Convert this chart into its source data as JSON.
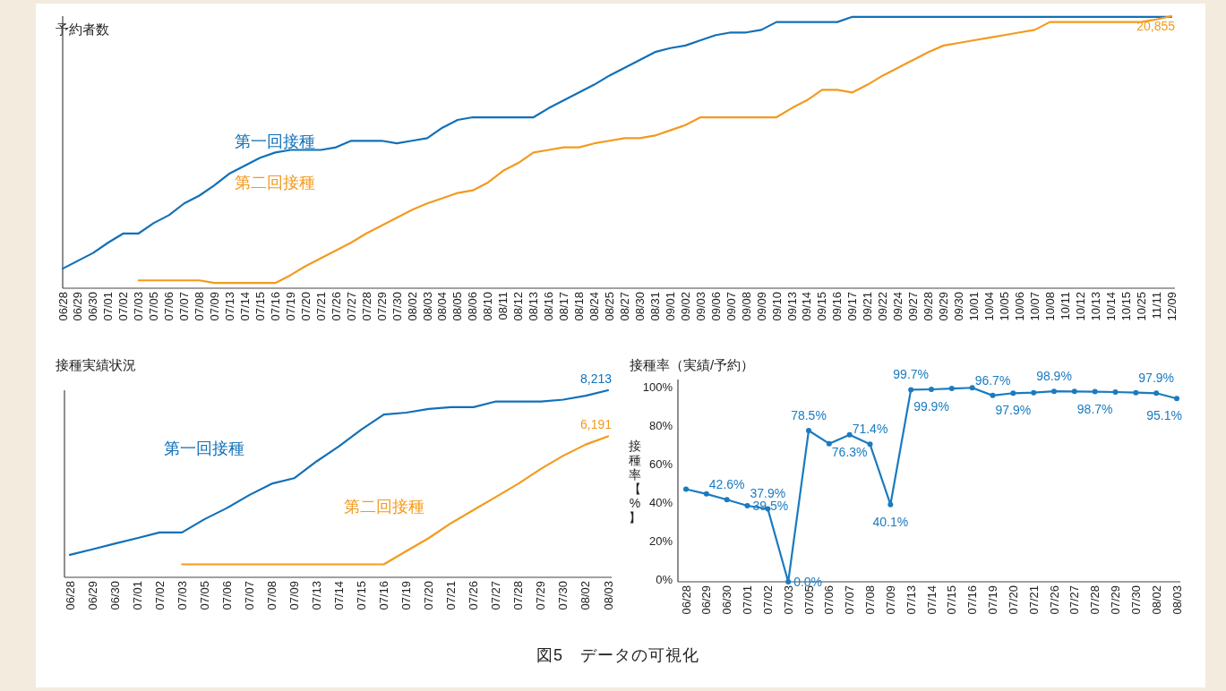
{
  "chart_data": [
    {
      "type": "line",
      "title": "予約者数",
      "ylim": [
        0,
        20855
      ],
      "categories": [
        "06/28",
        "06/29",
        "06/30",
        "07/01",
        "07/02",
        "07/03",
        "07/05",
        "07/06",
        "07/07",
        "07/08",
        "07/09",
        "07/13",
        "07/14",
        "07/15",
        "07/16",
        "07/19",
        "07/20",
        "07/21",
        "07/26",
        "07/27",
        "07/28",
        "07/29",
        "07/30",
        "08/02",
        "08/03",
        "08/04",
        "08/05",
        "08/06",
        "08/10",
        "08/11",
        "08/12",
        "08/13",
        "08/16",
        "08/17",
        "08/18",
        "08/24",
        "08/25",
        "08/27",
        "08/30",
        "08/31",
        "09/01",
        "09/02",
        "09/03",
        "09/06",
        "09/07",
        "09/08",
        "09/09",
        "09/10",
        "09/13",
        "09/14",
        "09/15",
        "09/16",
        "09/17",
        "09/21",
        "09/22",
        "09/24",
        "09/27",
        "09/28",
        "09/29",
        "09/30",
        "10/01",
        "10/04",
        "10/05",
        "10/06",
        "10/07",
        "10/08",
        "10/11",
        "10/12",
        "10/13",
        "10/14",
        "10/15",
        "10/25",
        "11/11",
        "12/09"
      ],
      "series": [
        {
          "name": "第一回接種",
          "color": "#1170b8",
          "values": [
            1500,
            2100,
            2700,
            3500,
            4200,
            4200,
            5000,
            5600,
            6500,
            7100,
            7900,
            8800,
            9400,
            10000,
            10400,
            10600,
            10600,
            10600,
            10800,
            11300,
            11300,
            11300,
            11100,
            11300,
            11500,
            12300,
            12900,
            13100,
            13100,
            13100,
            13100,
            13100,
            13800,
            14400,
            15000,
            15600,
            16300,
            16900,
            17500,
            18100,
            18400,
            18600,
            19000,
            19400,
            19600,
            19600,
            19800,
            20400,
            20400,
            20400,
            20400,
            20400,
            20800,
            20800,
            20800,
            20800,
            20800,
            20800,
            20800,
            20800,
            20800,
            20800,
            20800,
            20800,
            20800,
            20800,
            20800,
            20800,
            20800,
            20800,
            20800,
            20800,
            20800,
            20800
          ]
        },
        {
          "name": "第二回接種",
          "color": "#f39a1e",
          "values": [
            null,
            null,
            null,
            null,
            null,
            600,
            600,
            600,
            600,
            600,
            400,
            400,
            400,
            400,
            400,
            1000,
            1700,
            2300,
            2900,
            3500,
            4200,
            4800,
            5400,
            6000,
            6500,
            6900,
            7300,
            7500,
            8100,
            9000,
            9600,
            10400,
            10600,
            10800,
            10800,
            11100,
            11300,
            11500,
            11500,
            11700,
            12100,
            12500,
            13100,
            13100,
            13100,
            13100,
            13100,
            13100,
            13800,
            14400,
            15200,
            15200,
            15000,
            15600,
            16300,
            16900,
            17500,
            18100,
            18600,
            18800,
            19000,
            19200,
            19400,
            19600,
            19800,
            20400,
            20400,
            20400,
            20400,
            20400,
            20400,
            20400,
            20600,
            20855
          ],
          "value_labels": [
            null,
            null,
            null,
            null,
            null,
            null,
            null,
            null,
            null,
            null,
            null,
            null,
            null,
            null,
            null,
            null,
            null,
            null,
            null,
            null,
            null,
            null,
            null,
            null,
            null,
            null,
            null,
            null,
            null,
            null,
            null,
            null,
            null,
            null,
            null,
            null,
            null,
            null,
            null,
            null,
            null,
            null,
            null,
            null,
            null,
            null,
            null,
            null,
            null,
            null,
            null,
            null,
            null,
            null,
            null,
            null,
            null,
            null,
            null,
            null,
            null,
            null,
            null,
            null,
            null,
            null,
            null,
            null,
            null,
            null,
            null,
            null,
            null,
            "20,855"
          ]
        }
      ]
    },
    {
      "type": "line",
      "title": "接種実績状況",
      "ylim": [
        0,
        8213
      ],
      "categories": [
        "06/28",
        "06/29",
        "06/30",
        "07/01",
        "07/02",
        "07/03",
        "07/05",
        "07/06",
        "07/07",
        "07/08",
        "07/09",
        "07/13",
        "07/14",
        "07/15",
        "07/16",
        "07/19",
        "07/20",
        "07/21",
        "07/26",
        "07/27",
        "07/28",
        "07/29",
        "07/30",
        "08/02",
        "08/03"
      ],
      "series": [
        {
          "name": "第一回接種",
          "color": "#1170b8",
          "values": [
            990,
            1230,
            1480,
            1720,
            1970,
            1970,
            2550,
            3040,
            3610,
            4110,
            4350,
            5090,
            5750,
            6490,
            7150,
            7230,
            7390,
            7470,
            7470,
            7720,
            7720,
            7720,
            7800,
            7970,
            8213
          ],
          "value_labels": [
            null,
            null,
            null,
            null,
            null,
            null,
            null,
            null,
            null,
            null,
            null,
            null,
            null,
            null,
            null,
            null,
            null,
            null,
            null,
            null,
            null,
            null,
            null,
            null,
            "8,213"
          ]
        },
        {
          "name": "第二回接種",
          "color": "#f39a1e",
          "values": [
            null,
            null,
            null,
            null,
            null,
            570,
            570,
            570,
            570,
            570,
            570,
            570,
            570,
            570,
            570,
            1150,
            1720,
            2380,
            2960,
            3530,
            4110,
            4760,
            5340,
            5830,
            6191
          ],
          "value_labels": [
            null,
            null,
            null,
            null,
            null,
            null,
            null,
            null,
            null,
            null,
            null,
            null,
            null,
            null,
            null,
            null,
            null,
            null,
            null,
            null,
            null,
            null,
            null,
            null,
            "6,191"
          ]
        }
      ]
    },
    {
      "type": "line",
      "title": "接種率（実績/予約）",
      "ylabel": "接種率【%】",
      "ylim": [
        0,
        105
      ],
      "yticks": [
        {
          "value": 0,
          "label": "0%"
        },
        {
          "value": 20,
          "label": "20%"
        },
        {
          "value": 40,
          "label": "40%"
        },
        {
          "value": 60,
          "label": "60%"
        },
        {
          "value": 80,
          "label": "80%"
        },
        {
          "value": 100,
          "label": "100%"
        }
      ],
      "marker": "circle",
      "categories": [
        "06/28",
        "06/29",
        "06/30",
        "07/01",
        "07/02",
        "07/03",
        "07/05",
        "07/06",
        "07/07",
        "07/08",
        "07/09",
        "07/13",
        "07/14",
        "07/15",
        "07/16",
        "07/19",
        "07/20",
        "07/21",
        "07/26",
        "07/27",
        "07/28",
        "07/29",
        "07/30",
        "08/02",
        "08/03"
      ],
      "series": [
        {
          "color": "#1a7bc0",
          "values": [
            48.1,
            45.6,
            42.6,
            39.5,
            37.9,
            0.0,
            78.5,
            71.7,
            76.3,
            71.4,
            40.1,
            99.7,
            99.9,
            100.3,
            100.7,
            96.7,
            97.9,
            98.2,
            98.9,
            98.8,
            98.7,
            98.5,
            98.2,
            97.9,
            95.1
          ],
          "value_labels": [
            null,
            null,
            "42.6%",
            "39.5%",
            "37.9%",
            "0.0%",
            "78.5%",
            null,
            "76.3%",
            "71.4%",
            "40.1%",
            "99.7%",
            "99.9%",
            null,
            null,
            "96.7%",
            "97.9%",
            null,
            "98.9%",
            null,
            "98.7%",
            null,
            null,
            "97.9%",
            "95.1%"
          ]
        }
      ],
      "annotations": [
        "図5　データの可視化"
      ]
    }
  ]
}
